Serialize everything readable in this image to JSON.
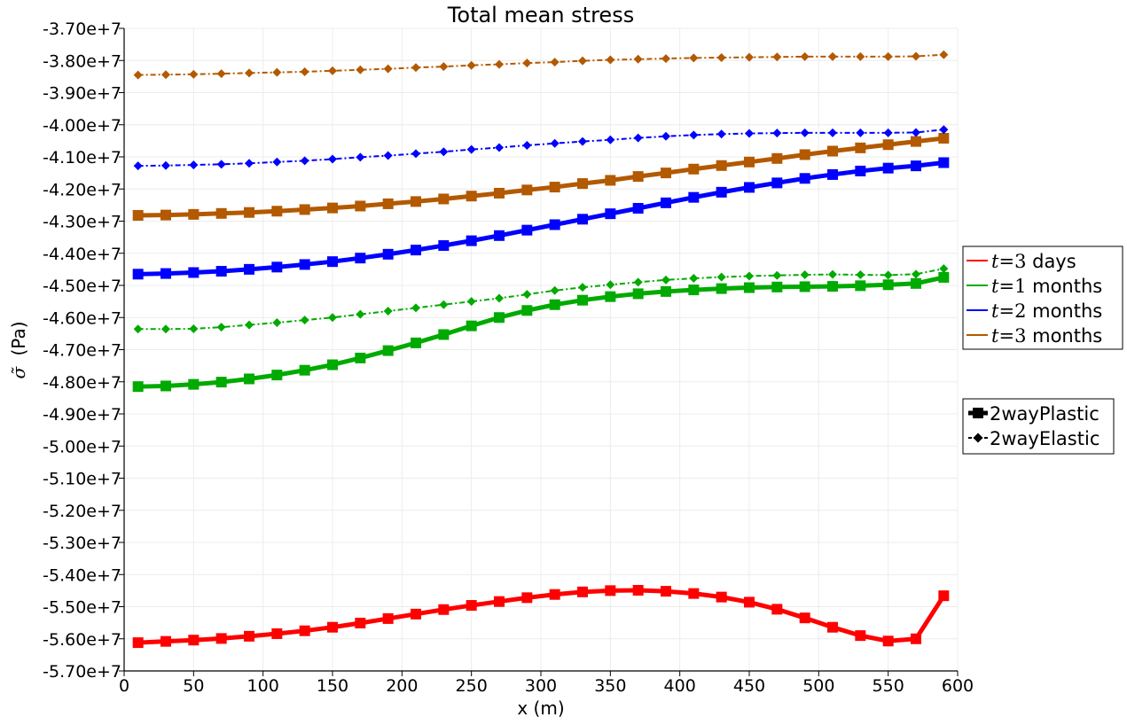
{
  "chart_data": {
    "type": "line",
    "title": "Total mean stress",
    "xlabel": "x (m)",
    "ylabel_symbol": "σ̃",
    "ylabel_unit": "(Pa)",
    "xlim": [
      0,
      600
    ],
    "ylim": [
      -57000000.0,
      -37000000.0
    ],
    "x_ticks": [
      0,
      50,
      100,
      150,
      200,
      250,
      300,
      350,
      400,
      450,
      500,
      550,
      600
    ],
    "x_tick_labels": [
      "0",
      "50",
      "100",
      "150",
      "200",
      "250",
      "300",
      "350",
      "400",
      "450",
      "500",
      "550",
      "600"
    ],
    "y_ticks": [
      -37000000.0,
      -38000000.0,
      -39000000.0,
      -40000000.0,
      -41000000.0,
      -42000000.0,
      -43000000.0,
      -44000000.0,
      -45000000.0,
      -46000000.0,
      -47000000.0,
      -48000000.0,
      -49000000.0,
      -50000000.0,
      -51000000.0,
      -52000000.0,
      -53000000.0,
      -54000000.0,
      -55000000.0,
      -56000000.0,
      -57000000.0
    ],
    "y_tick_labels": [
      "-3.70e+7",
      "-3.80e+7",
      "-3.90e+7",
      "-4.00e+7",
      "-4.10e+7",
      "-4.20e+7",
      "-4.30e+7",
      "-4.40e+7",
      "-4.50e+7",
      "-4.60e+7",
      "-4.70e+7",
      "-4.80e+7",
      "-4.90e+7",
      "-5.00e+7",
      "-5.10e+7",
      "-5.20e+7",
      "-5.30e+7",
      "-5.40e+7",
      "-5.50e+7",
      "-5.60e+7",
      "-5.70e+7"
    ],
    "grid": true,
    "legend_position": "right",
    "x": [
      10,
      30,
      50,
      70,
      90,
      110,
      130,
      150,
      170,
      190,
      210,
      230,
      250,
      270,
      290,
      310,
      330,
      350,
      370,
      390,
      410,
      430,
      450,
      470,
      490,
      510,
      530,
      550,
      570,
      590
    ],
    "time_legend": [
      {
        "prefix": "t",
        "eq": "=",
        "num": "3",
        "unit": " days",
        "color": "#ff0000"
      },
      {
        "prefix": "t",
        "eq": "=",
        "num": "1",
        "unit": " months",
        "color": "#00aa00"
      },
      {
        "prefix": "t",
        "eq": "=",
        "num": "2",
        "unit": " months",
        "color": "#0000ff"
      },
      {
        "prefix": "t",
        "eq": "=",
        "num": "3",
        "unit": " months",
        "color": "#b35900"
      }
    ],
    "style_legend": [
      {
        "name": "2wayPlastic",
        "marker": "square",
        "line": "solid"
      },
      {
        "name": "2wayElastic",
        "marker": "diamond",
        "line": "dashdot"
      }
    ],
    "series": [
      {
        "time_index": 0,
        "style": "2wayPlastic",
        "color": "#ff0000",
        "values": [
          -56120000.0,
          -56080000.0,
          -56040000.0,
          -55990000.0,
          -55920000.0,
          -55840000.0,
          -55750000.0,
          -55640000.0,
          -55510000.0,
          -55370000.0,
          -55230000.0,
          -55090000.0,
          -54960000.0,
          -54840000.0,
          -54720000.0,
          -54620000.0,
          -54540000.0,
          -54500000.0,
          -54490000.0,
          -54520000.0,
          -54590000.0,
          -54700000.0,
          -54860000.0,
          -55080000.0,
          -55350000.0,
          -55640000.0,
          -55900000.0,
          -56070000.0,
          -56000000.0,
          -54660000.0
        ]
      },
      {
        "time_index": 1,
        "style": "2wayPlastic",
        "color": "#00aa00",
        "values": [
          -48150000.0,
          -48130000.0,
          -48080000.0,
          -48010000.0,
          -47910000.0,
          -47790000.0,
          -47640000.0,
          -47470000.0,
          -47260000.0,
          -47030000.0,
          -46790000.0,
          -46530000.0,
          -46260000.0,
          -46000000.0,
          -45780000.0,
          -45600000.0,
          -45460000.0,
          -45350000.0,
          -45260000.0,
          -45190000.0,
          -45140000.0,
          -45100000.0,
          -45070000.0,
          -45050000.0,
          -45040000.0,
          -45030000.0,
          -45010000.0,
          -44980000.0,
          -44940000.0,
          -44750000.0
        ]
      },
      {
        "time_index": 2,
        "style": "2wayPlastic",
        "color": "#0000ff",
        "values": [
          -44650000.0,
          -44630000.0,
          -44600000.0,
          -44560000.0,
          -44500000.0,
          -44430000.0,
          -44350000.0,
          -44260000.0,
          -44150000.0,
          -44030000.0,
          -43900000.0,
          -43760000.0,
          -43610000.0,
          -43450000.0,
          -43280000.0,
          -43110000.0,
          -42940000.0,
          -42770000.0,
          -42600000.0,
          -42430000.0,
          -42260000.0,
          -42100000.0,
          -41950000.0,
          -41810000.0,
          -41670000.0,
          -41550000.0,
          -41440000.0,
          -41350000.0,
          -41280000.0,
          -41180000.0
        ]
      },
      {
        "time_index": 3,
        "style": "2wayPlastic",
        "color": "#b35900",
        "values": [
          -42820000.0,
          -42810000.0,
          -42790000.0,
          -42760000.0,
          -42730000.0,
          -42690000.0,
          -42640000.0,
          -42590000.0,
          -42530000.0,
          -42460000.0,
          -42390000.0,
          -42310000.0,
          -42220000.0,
          -42130000.0,
          -42030000.0,
          -41940000.0,
          -41830000.0,
          -41730000.0,
          -41610000.0,
          -41500000.0,
          -41380000.0,
          -41270000.0,
          -41160000.0,
          -41050000.0,
          -40930000.0,
          -40820000.0,
          -40720000.0,
          -40620000.0,
          -40520000.0,
          -40420000.0
        ]
      },
      {
        "time_index": 1,
        "style": "2wayElastic",
        "color": "#00aa00",
        "values": [
          -46360000.0,
          -46360000.0,
          -46350000.0,
          -46300000.0,
          -46230000.0,
          -46160000.0,
          -46080000.0,
          -46000000.0,
          -45900000.0,
          -45800000.0,
          -45700000.0,
          -45600000.0,
          -45500000.0,
          -45400000.0,
          -45280000.0,
          -45160000.0,
          -45060000.0,
          -44980000.0,
          -44900000.0,
          -44830000.0,
          -44780000.0,
          -44740000.0,
          -44710000.0,
          -44690000.0,
          -44670000.0,
          -44660000.0,
          -44670000.0,
          -44680000.0,
          -44650000.0,
          -44480000.0
        ]
      },
      {
        "time_index": 2,
        "style": "2wayElastic",
        "color": "#0000ff",
        "values": [
          -41280000.0,
          -41270000.0,
          -41250000.0,
          -41230000.0,
          -41200000.0,
          -41160000.0,
          -41120000.0,
          -41070000.0,
          -41010000.0,
          -40960000.0,
          -40900000.0,
          -40840000.0,
          -40770000.0,
          -40710000.0,
          -40640000.0,
          -40580000.0,
          -40520000.0,
          -40470000.0,
          -40410000.0,
          -40360000.0,
          -40320000.0,
          -40290000.0,
          -40270000.0,
          -40260000.0,
          -40250000.0,
          -40250000.0,
          -40250000.0,
          -40250000.0,
          -40240000.0,
          -40150000.0
        ]
      },
      {
        "time_index": 3,
        "style": "2wayElastic",
        "color": "#b35900",
        "values": [
          -38450000.0,
          -38440000.0,
          -38430000.0,
          -38410000.0,
          -38390000.0,
          -38370000.0,
          -38350000.0,
          -38320000.0,
          -38290000.0,
          -38260000.0,
          -38220000.0,
          -38190000.0,
          -38150000.0,
          -38120000.0,
          -38080000.0,
          -38050000.0,
          -38010000.0,
          -37980000.0,
          -37960000.0,
          -37940000.0,
          -37920000.0,
          -37910000.0,
          -37900000.0,
          -37890000.0,
          -37880000.0,
          -37880000.0,
          -37880000.0,
          -37880000.0,
          -37870000.0,
          -37820000.0
        ]
      }
    ]
  }
}
